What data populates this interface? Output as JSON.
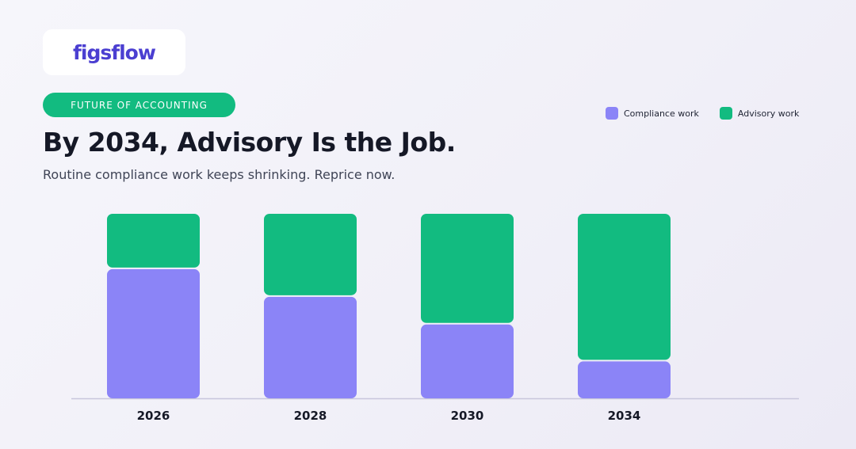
{
  "logo": {
    "text": "figsflow"
  },
  "badge": {
    "label": "FUTURE OF ACCOUNTING"
  },
  "header": {
    "title": "By 2034, Advisory Is the Job.",
    "subtitle": "Routine compliance work keeps shrinking. Reprice now."
  },
  "colors": {
    "compliance": "#8b84f7",
    "advisory": "#12bb80",
    "axis": "#c8c6dc"
  },
  "chart_data": {
    "type": "bar",
    "stacked": true,
    "categories": [
      "2026",
      "2028",
      "2030",
      "2034"
    ],
    "series": [
      {
        "name": "Compliance work",
        "values": [
          70,
          55,
          40,
          20
        ]
      },
      {
        "name": "Advisory work",
        "values": [
          30,
          45,
          60,
          80
        ]
      }
    ],
    "ylim": [
      0,
      100
    ],
    "grid": false,
    "legend": "top-right"
  }
}
